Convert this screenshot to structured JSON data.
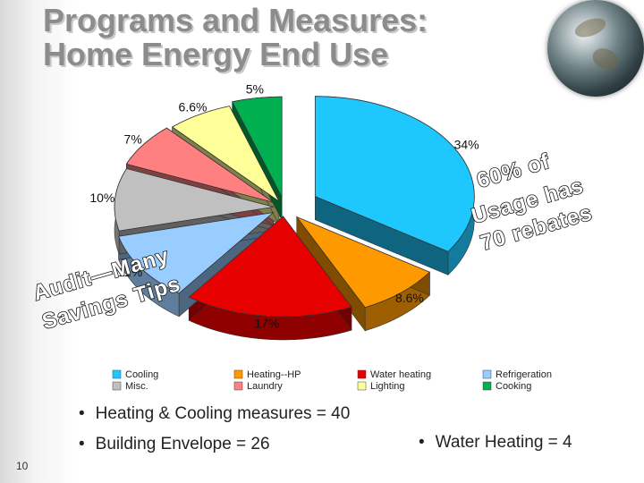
{
  "title_lines": [
    "Programs and Measures:",
    "Home Energy End Use"
  ],
  "chart_data": {
    "type": "pie",
    "slices": [
      {
        "name": "Cooling",
        "value": 34,
        "label": "34%",
        "color": "#1ec8ff"
      },
      {
        "name": "Heating--HP",
        "value": 8.6,
        "label": "8.6%",
        "color": "#ff9900"
      },
      {
        "name": "Water heating",
        "value": 17,
        "label": "17%",
        "color": "#e60000"
      },
      {
        "name": "Refrigeration",
        "value": 11,
        "label": "11%",
        "color": "#99ccff"
      },
      {
        "name": "Misc.",
        "value": 10,
        "label": "10%",
        "color": "#c0c0c0"
      },
      {
        "name": "Laundry",
        "value": 7,
        "label": "7%",
        "color": "#ff8080"
      },
      {
        "name": "Lighting",
        "value": 6.6,
        "label": "6.6%",
        "color": "#ffff99"
      },
      {
        "name": "Cooking",
        "value": 5,
        "label": "5%",
        "color": "#00b050"
      }
    ],
    "legend_order": [
      "Cooling",
      "Heating--HP",
      "Water heating",
      "Refrigeration",
      "Misc.",
      "Laundry",
      "Lighting",
      "Cooking"
    ],
    "legend_placement": "bottom"
  },
  "annotations": {
    "audit": [
      "Audit—Many",
      "Savings Tips"
    ],
    "rebates": [
      "60% of",
      "Usage has",
      "70 rebates"
    ]
  },
  "bullets": {
    "heating_cooling": "Heating & Cooling measures = 40",
    "building_envelope": "Building Envelope = 26",
    "water_heating": "Water Heating = 4",
    "marker": "•"
  },
  "page_number": "10",
  "colors": {
    "title": "#8c8c8c",
    "annotation_fill": "#ffffff",
    "annotation_stroke": "#1a1a1a"
  }
}
